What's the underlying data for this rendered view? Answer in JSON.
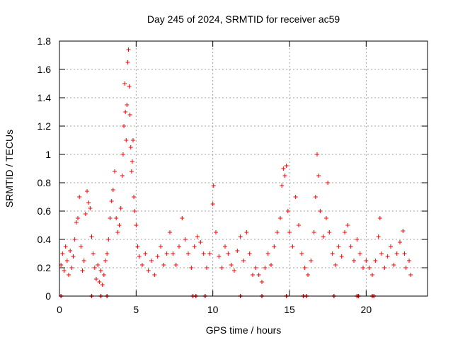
{
  "chart_data": {
    "type": "scatter",
    "title": "Day 245 of 2024, SRMTID for receiver ac59",
    "xlabel": "GPS time / hours",
    "ylabel": "SRMTID / TECUs",
    "xlim": [
      0,
      24
    ],
    "ylim": [
      0,
      1.8
    ],
    "xticks": [
      0,
      5,
      10,
      15,
      20
    ],
    "xtick_labels": [
      "0",
      "5",
      "10",
      "15",
      "20"
    ],
    "yticks": [
      0,
      0.2,
      0.4,
      0.6,
      0.8,
      1.0,
      1.2,
      1.4,
      1.6,
      1.8
    ],
    "ytick_labels": [
      "0",
      "0.2",
      "0.4",
      "0.6",
      "0.8",
      "1",
      "1.2",
      "1.4",
      "1.6",
      "1.8"
    ],
    "grid": true,
    "marker": "+",
    "series": [
      {
        "name": "SRMTID",
        "color": "#ff0000",
        "points": [
          [
            0.1,
            0.22
          ],
          [
            0.2,
            0.3
          ],
          [
            0.3,
            0.18
          ],
          [
            0.4,
            0.35
          ],
          [
            0.5,
            0.25
          ],
          [
            0.6,
            0.15
          ],
          [
            0.7,
            0.32
          ],
          [
            0.8,
            0.2
          ],
          [
            0.9,
            0.28
          ],
          [
            1.0,
            0.4
          ],
          [
            1.1,
            0.52
          ],
          [
            1.2,
            0.55
          ],
          [
            1.3,
            0.7
          ],
          [
            1.4,
            0.35
          ],
          [
            1.5,
            0.18
          ],
          [
            1.6,
            0.25
          ],
          [
            1.7,
            0.58
          ],
          [
            1.8,
            0.74
          ],
          [
            1.9,
            0.66
          ],
          [
            2.0,
            0.62
          ],
          [
            2.1,
            0.42
          ],
          [
            2.2,
            0.3
          ],
          [
            2.3,
            0.2
          ],
          [
            2.4,
            0.12
          ],
          [
            2.5,
            0.22
          ],
          [
            2.6,
            0.1
          ],
          [
            2.7,
            0.18
          ],
          [
            2.8,
            0.08
          ],
          [
            2.9,
            0.15
          ],
          [
            3.0,
            0.25
          ],
          [
            3.1,
            0.3
          ],
          [
            3.2,
            0.4
          ],
          [
            3.3,
            0.55
          ],
          [
            3.4,
            0.67
          ],
          [
            3.5,
            0.75
          ],
          [
            3.6,
            0.88
          ],
          [
            3.7,
            0.55
          ],
          [
            3.8,
            0.45
          ],
          [
            3.9,
            0.5
          ],
          [
            4.0,
            0.62
          ],
          [
            4.1,
            0.85
          ],
          [
            4.15,
            1.0
          ],
          [
            4.2,
            1.2
          ],
          [
            4.25,
            1.5
          ],
          [
            4.3,
            1.3
          ],
          [
            4.35,
            1.1
          ],
          [
            4.4,
            1.35
          ],
          [
            4.45,
            1.65
          ],
          [
            4.5,
            1.74
          ],
          [
            4.55,
            1.48
          ],
          [
            4.6,
            1.28
          ],
          [
            4.65,
            1.05
          ],
          [
            4.7,
            0.88
          ],
          [
            4.75,
            0.95
          ],
          [
            4.8,
            1.1
          ],
          [
            4.85,
            0.7
          ],
          [
            4.9,
            0.6
          ],
          [
            5.0,
            0.5
          ],
          [
            5.1,
            0.35
          ],
          [
            5.2,
            0.28
          ],
          [
            5.4,
            0.22
          ],
          [
            5.6,
            0.3
          ],
          [
            5.8,
            0.18
          ],
          [
            6.0,
            0.25
          ],
          [
            6.2,
            0.15
          ],
          [
            6.4,
            0.28
          ],
          [
            6.6,
            0.35
          ],
          [
            6.8,
            0.22
          ],
          [
            7.0,
            0.3
          ],
          [
            7.2,
            0.45
          ],
          [
            7.4,
            0.3
          ],
          [
            7.6,
            0.22
          ],
          [
            7.8,
            0.35
          ],
          [
            8.0,
            0.55
          ],
          [
            8.2,
            0.4
          ],
          [
            8.4,
            0.3
          ],
          [
            8.6,
            0.2
          ],
          [
            8.8,
            0.35
          ],
          [
            9.0,
            0.42
          ],
          [
            9.2,
            0.38
          ],
          [
            9.4,
            0.3
          ],
          [
            9.6,
            0.2
          ],
          [
            9.8,
            0.3
          ],
          [
            10.0,
            0.65
          ],
          [
            10.05,
            0.78
          ],
          [
            10.2,
            0.45
          ],
          [
            10.4,
            0.28
          ],
          [
            10.6,
            0.2
          ],
          [
            10.8,
            0.35
          ],
          [
            11.0,
            0.3
          ],
          [
            11.2,
            0.22
          ],
          [
            11.4,
            0.18
          ],
          [
            11.6,
            0.32
          ],
          [
            11.8,
            0.42
          ],
          [
            12.0,
            0.25
          ],
          [
            12.2,
            0.45
          ],
          [
            12.4,
            0.3
          ],
          [
            12.6,
            0.15
          ],
          [
            12.8,
            0.2
          ],
          [
            13.0,
            0.15
          ],
          [
            13.2,
            0.1
          ],
          [
            13.4,
            0.2
          ],
          [
            13.6,
            0.3
          ],
          [
            13.8,
            0.22
          ],
          [
            14.0,
            0.35
          ],
          [
            14.2,
            0.45
          ],
          [
            14.4,
            0.55
          ],
          [
            14.5,
            0.78
          ],
          [
            14.6,
            0.9
          ],
          [
            14.7,
            0.85
          ],
          [
            14.8,
            0.92
          ],
          [
            14.9,
            0.6
          ],
          [
            15.0,
            0.45
          ],
          [
            15.2,
            0.35
          ],
          [
            15.4,
            0.7
          ],
          [
            15.6,
            0.5
          ],
          [
            15.8,
            0.3
          ],
          [
            16.0,
            0.2
          ],
          [
            16.2,
            0.15
          ],
          [
            16.4,
            0.25
          ],
          [
            16.6,
            0.45
          ],
          [
            16.7,
            0.7
          ],
          [
            16.8,
            1.0
          ],
          [
            16.9,
            0.85
          ],
          [
            17.0,
            0.6
          ],
          [
            17.2,
            0.42
          ],
          [
            17.4,
            0.55
          ],
          [
            17.5,
            0.8
          ],
          [
            17.6,
            0.45
          ],
          [
            17.8,
            0.3
          ],
          [
            18.0,
            0.22
          ],
          [
            18.2,
            0.35
          ],
          [
            18.4,
            0.28
          ],
          [
            18.6,
            0.45
          ],
          [
            18.8,
            0.5
          ],
          [
            19.0,
            0.35
          ],
          [
            19.2,
            0.25
          ],
          [
            19.4,
            0.4
          ],
          [
            19.6,
            0.3
          ],
          [
            19.8,
            0.2
          ],
          [
            20.0,
            0.25
          ],
          [
            20.2,
            0.2
          ],
          [
            20.4,
            0.15
          ],
          [
            20.6,
            0.25
          ],
          [
            20.8,
            0.42
          ],
          [
            20.9,
            0.55
          ],
          [
            21.0,
            0.3
          ],
          [
            21.2,
            0.2
          ],
          [
            21.4,
            0.28
          ],
          [
            21.6,
            0.35
          ],
          [
            21.8,
            0.22
          ],
          [
            22.0,
            0.3
          ],
          [
            22.2,
            0.38
          ],
          [
            22.4,
            0.46
          ],
          [
            22.5,
            0.3
          ],
          [
            22.6,
            0.2
          ],
          [
            22.8,
            0.25
          ],
          [
            22.9,
            0.15
          ]
        ]
      }
    ],
    "zero_markers_x": [
      0.1,
      2.1,
      2.7,
      3.1,
      8.7,
      8.9,
      9.5,
      11.8,
      13.2,
      14.8,
      15.9,
      16.1,
      17.9,
      19.4,
      19.5,
      20.4,
      20.5
    ]
  }
}
